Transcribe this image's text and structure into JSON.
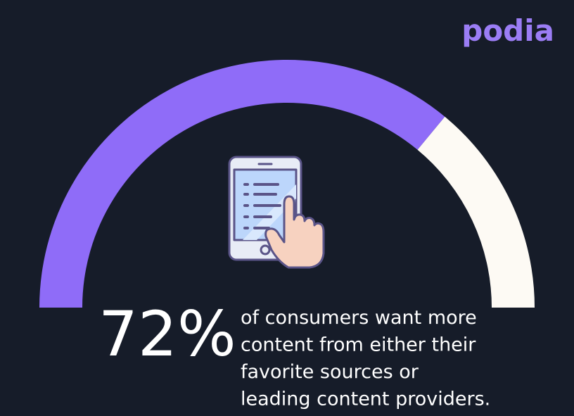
{
  "chart_data": {
    "type": "gauge",
    "brand": "podia",
    "values": [
      72
    ],
    "value_labels": [
      "72%"
    ],
    "ylim": [
      0,
      100
    ],
    "color": "#8f6cf8",
    "track_color": "#fdfaf4",
    "text_lines": [
      "of consumers want more",
      "content from either their",
      "favorite sources or",
      "leading content providers."
    ]
  }
}
